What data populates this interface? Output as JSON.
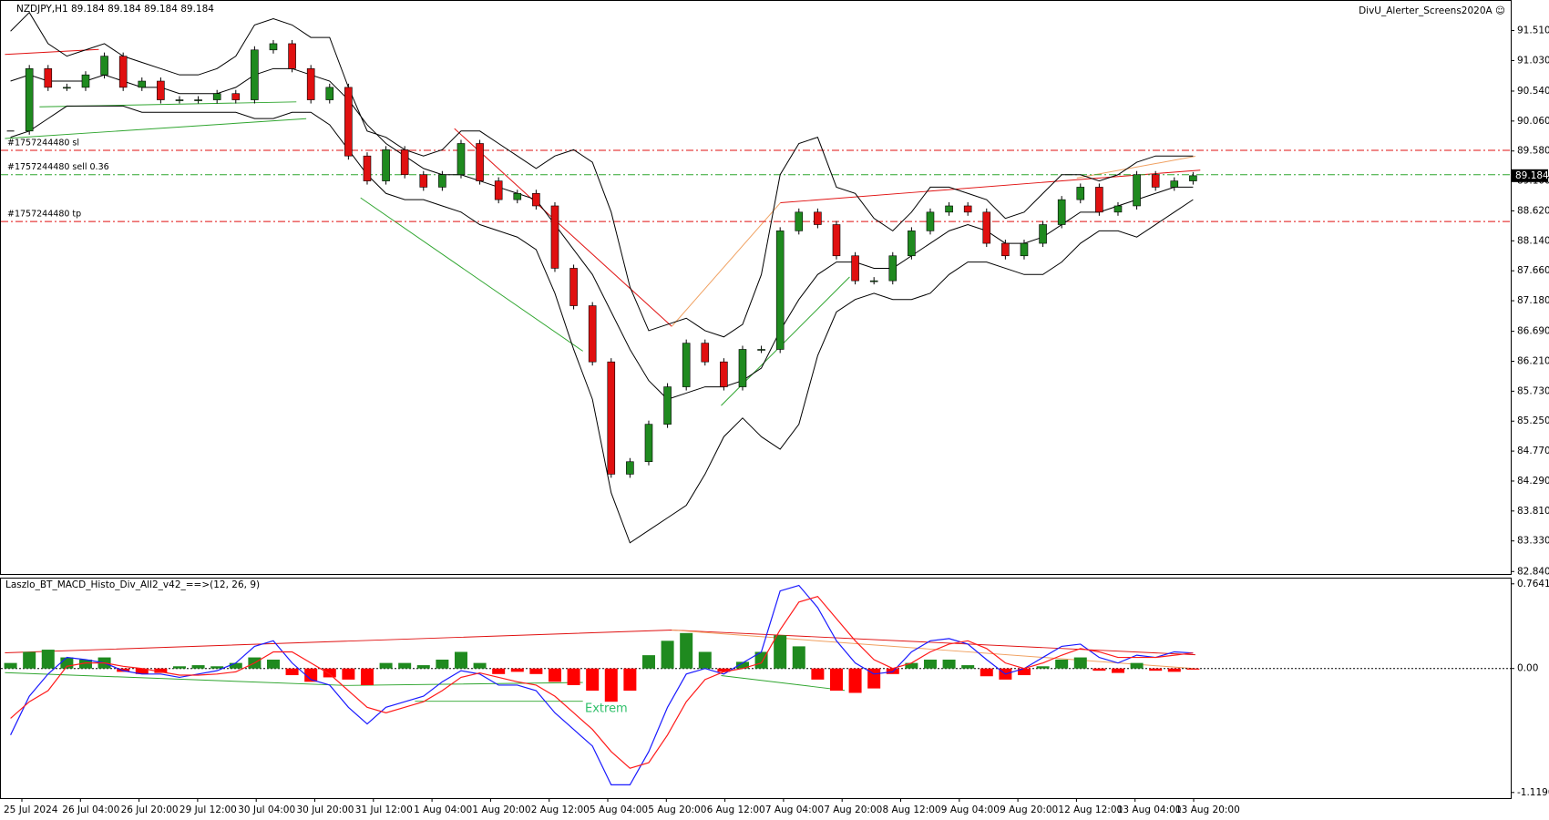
{
  "chart_data": {
    "type": "candlestick",
    "title": "NZDJPY,H1  89.184 89.184 89.184 89.184",
    "corner_label": "DivU_Alerter_Screens2020A ☺",
    "ylim": [
      82.8,
      92.0
    ],
    "yticks": [
      {
        "value": 91.51,
        "label": "91.510"
      },
      {
        "value": 91.03,
        "label": "91.030"
      },
      {
        "value": 90.54,
        "label": "90.540"
      },
      {
        "value": 90.06,
        "label": "90.060"
      },
      {
        "value": 89.58,
        "label": "89.580"
      },
      {
        "value": 89.1,
        "label": "89.100"
      },
      {
        "value": 88.62,
        "label": "88.620"
      },
      {
        "value": 88.14,
        "label": "88.140"
      },
      {
        "value": 87.66,
        "label": "87.660"
      },
      {
        "value": 87.18,
        "label": "87.180"
      },
      {
        "value": 86.69,
        "label": "86.690"
      },
      {
        "value": 86.21,
        "label": "86.210"
      },
      {
        "value": 85.73,
        "label": "85.730"
      },
      {
        "value": 85.25,
        "label": "85.250"
      },
      {
        "value": 84.77,
        "label": "84.770"
      },
      {
        "value": 84.29,
        "label": "84.290"
      },
      {
        "value": 83.81,
        "label": "83.810"
      },
      {
        "value": 83.33,
        "label": "83.330"
      },
      {
        "value": 82.84,
        "label": "82.840"
      }
    ],
    "x_labels": [
      "25 Jul 2024",
      "26 Jul 04:00",
      "26 Jul 20:00",
      "29 Jul 12:00",
      "30 Jul 04:00",
      "30 Jul 20:00",
      "31 Jul 12:00",
      "1 Aug 04:00",
      "1 Aug 20:00",
      "2 Aug 12:00",
      "5 Aug 04:00",
      "5 Aug 20:00",
      "6 Aug 12:00",
      "7 Aug 04:00",
      "7 Aug 20:00",
      "8 Aug 12:00",
      "9 Aug 04:00",
      "9 Aug 20:00",
      "12 Aug 12:00",
      "13 Aug 04:00",
      "13 Aug 20:00"
    ],
    "close": [
      89.9,
      90.9,
      90.6,
      90.6,
      90.8,
      91.1,
      90.6,
      90.7,
      90.4,
      90.4,
      90.4,
      90.5,
      90.4,
      91.2,
      91.3,
      90.9,
      90.4,
      90.6,
      89.5,
      89.1,
      89.6,
      89.2,
      89.0,
      89.2,
      89.7,
      89.1,
      88.8,
      88.9,
      88.7,
      87.7,
      87.1,
      86.2,
      84.4,
      84.6,
      85.2,
      85.8,
      86.5,
      86.2,
      85.8,
      86.4,
      86.4,
      88.3,
      88.6,
      88.4,
      87.9,
      87.5,
      87.5,
      87.9,
      88.3,
      88.6,
      88.7,
      88.6,
      88.1,
      87.9,
      88.1,
      88.4,
      88.8,
      89.0,
      88.6,
      88.7,
      89.2,
      89.0,
      89.1,
      89.184
    ],
    "up_color": "#1f8a1f",
    "down_color": "#e01010",
    "bands": [
      {
        "color": "#000000",
        "values": [
          91.5,
          91.8,
          91.3,
          91.1,
          91.2,
          91.3,
          91.1,
          91.0,
          90.9,
          90.8,
          90.8,
          90.9,
          91.1,
          91.6,
          91.7,
          91.6,
          91.4,
          91.4,
          90.6,
          89.9,
          89.8,
          89.6,
          89.5,
          89.6,
          89.9,
          89.9,
          89.7,
          89.5,
          89.3,
          89.5,
          89.6,
          89.4,
          88.6,
          87.4,
          86.7,
          86.8,
          86.9,
          86.7,
          86.6,
          86.8,
          87.6,
          89.2,
          89.7,
          89.8,
          89.0,
          88.9,
          88.5,
          88.3,
          88.6,
          89.0,
          89.0,
          88.9,
          88.8,
          88.5,
          88.6,
          88.9,
          89.2,
          89.2,
          89.1,
          89.2,
          89.4,
          89.5,
          89.5,
          89.5
        ]
      },
      {
        "color": "#000000",
        "values": [
          90.7,
          90.8,
          90.7,
          90.7,
          90.7,
          90.8,
          90.7,
          90.6,
          90.6,
          90.5,
          90.5,
          90.5,
          90.6,
          90.8,
          90.9,
          90.9,
          90.8,
          90.7,
          90.4,
          90.0,
          89.7,
          89.5,
          89.3,
          89.2,
          89.2,
          89.1,
          89.0,
          88.9,
          88.8,
          88.4,
          88.0,
          87.6,
          87.0,
          86.4,
          85.9,
          85.6,
          85.7,
          85.8,
          85.8,
          85.9,
          86.1,
          86.7,
          87.2,
          87.6,
          87.8,
          87.8,
          87.7,
          87.7,
          87.9,
          88.1,
          88.3,
          88.4,
          88.3,
          88.1,
          88.1,
          88.2,
          88.4,
          88.6,
          88.6,
          88.7,
          88.8,
          88.9,
          89.0,
          89.0
        ]
      },
      {
        "color": "#000000",
        "values": [
          89.8,
          89.9,
          90.1,
          90.3,
          90.3,
          90.3,
          90.3,
          90.2,
          90.2,
          90.2,
          90.2,
          90.2,
          90.2,
          90.1,
          90.1,
          90.2,
          90.2,
          90.0,
          89.6,
          89.2,
          88.9,
          88.8,
          88.8,
          88.7,
          88.6,
          88.4,
          88.3,
          88.2,
          88.0,
          87.3,
          86.4,
          85.6,
          84.1,
          83.3,
          83.5,
          83.7,
          83.9,
          84.4,
          85.0,
          85.3,
          85.0,
          84.8,
          85.2,
          86.3,
          87.0,
          87.2,
          87.3,
          87.2,
          87.2,
          87.3,
          87.6,
          87.8,
          87.8,
          87.7,
          87.6,
          87.6,
          87.8,
          88.1,
          88.3,
          88.3,
          88.2,
          88.4,
          88.6,
          88.8
        ]
      }
    ],
    "orders": [
      {
        "label": "#1757244480 sl",
        "price": 89.59,
        "color": "#e01010"
      },
      {
        "label": "#1757244480 sell 0.36",
        "price": 89.2,
        "color": "#2fa52f"
      },
      {
        "label": "#1757244480 tp",
        "price": 88.45,
        "color": "#e01010"
      }
    ],
    "last_price": 89.184,
    "macd_pane": {
      "title": "Laszlo_BT_MACD_Histo_Div_All2_v42_==>(12, 26, 9)",
      "annotation": "Extrem",
      "ylim": [
        -1.17,
        0.82
      ],
      "yticks": [
        0.764112,
        {
          "value": 0,
          "label": "0.00"
        },
        -1.11906
      ],
      "histogram": [
        0.05,
        0.15,
        0.17,
        0.1,
        0.08,
        0.1,
        -0.03,
        -0.05,
        -0.04,
        0.02,
        0.03,
        0.02,
        0.05,
        0.1,
        0.08,
        -0.06,
        -0.12,
        -0.08,
        -0.1,
        -0.15,
        0.05,
        0.05,
        0.03,
        0.08,
        0.15,
        0.05,
        -0.05,
        -0.03,
        -0.05,
        -0.12,
        -0.15,
        -0.2,
        -0.3,
        -0.2,
        0.12,
        0.25,
        0.32,
        0.15,
        -0.03,
        0.06,
        0.15,
        0.3,
        0.2,
        -0.1,
        -0.2,
        -0.22,
        -0.18,
        -0.05,
        0.05,
        0.08,
        0.08,
        0.03,
        -0.07,
        -0.1,
        -0.06,
        0.02,
        0.08,
        0.1,
        -0.02,
        -0.04,
        0.05,
        -0.02,
        -0.03,
        -0.01
      ],
      "series": [
        {
          "color": "#1a1aff",
          "values": [
            -0.6,
            -0.25,
            -0.05,
            0.1,
            0.08,
            0.05,
            -0.02,
            -0.05,
            -0.05,
            -0.08,
            -0.05,
            -0.02,
            0.05,
            0.2,
            0.25,
            0.05,
            -0.1,
            -0.15,
            -0.35,
            -0.5,
            -0.35,
            -0.3,
            -0.25,
            -0.12,
            -0.02,
            -0.05,
            -0.15,
            -0.15,
            -0.2,
            -0.4,
            -0.55,
            -0.7,
            -1.05,
            -1.05,
            -0.75,
            -0.35,
            -0.05,
            0.0,
            -0.05,
            0.05,
            0.15,
            0.7,
            0.75,
            0.55,
            0.25,
            0.05,
            -0.05,
            -0.03,
            0.15,
            0.25,
            0.27,
            0.22,
            0.08,
            -0.05,
            0.0,
            0.1,
            0.2,
            0.22,
            0.1,
            0.05,
            0.12,
            0.1,
            0.15,
            0.14
          ]
        },
        {
          "color": "#ff1a1a",
          "values": [
            -0.45,
            -0.3,
            -0.2,
            0.02,
            0.05,
            0.05,
            0.02,
            0.0,
            -0.03,
            -0.06,
            -0.06,
            -0.05,
            -0.03,
            0.05,
            0.15,
            0.15,
            0.05,
            -0.05,
            -0.2,
            -0.35,
            -0.4,
            -0.35,
            -0.3,
            -0.2,
            -0.08,
            -0.04,
            -0.08,
            -0.12,
            -0.15,
            -0.25,
            -0.4,
            -0.55,
            -0.75,
            -0.9,
            -0.85,
            -0.6,
            -0.3,
            -0.1,
            -0.03,
            0.0,
            0.05,
            0.35,
            0.6,
            0.65,
            0.45,
            0.25,
            0.08,
            0.0,
            0.05,
            0.15,
            0.22,
            0.25,
            0.18,
            0.05,
            0.0,
            0.05,
            0.12,
            0.18,
            0.15,
            0.1,
            0.1,
            0.1,
            0.12,
            0.14
          ]
        }
      ],
      "up_color": "#1f8a1f",
      "down_color": "#ff0000"
    }
  }
}
